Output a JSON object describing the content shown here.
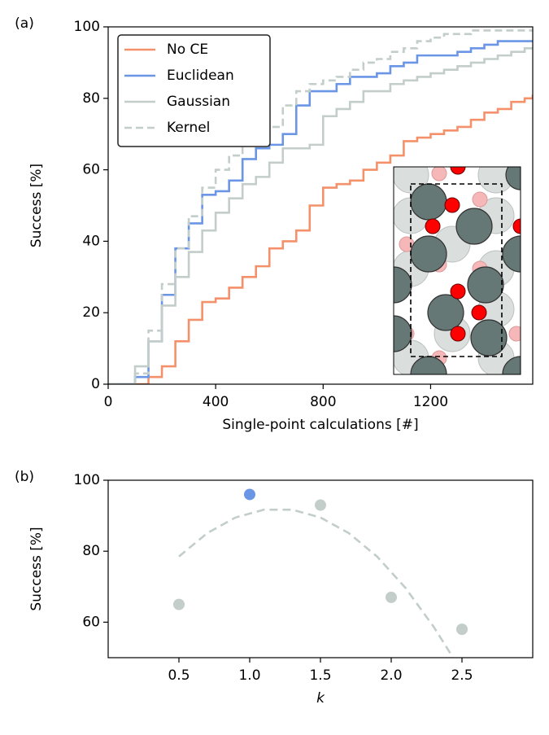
{
  "chart_data": [
    {
      "type": "line",
      "panel_label": "(a)",
      "xlabel": "Single-point calculations [#]",
      "ylabel": "Success [%]",
      "drawstyle": "steps-post",
      "legend": "upper left",
      "x": [
        0,
        50,
        100,
        150,
        200,
        250,
        300,
        350,
        400,
        450,
        500,
        550,
        600,
        650,
        700,
        750,
        800,
        850,
        900,
        950,
        1000,
        1050,
        1100,
        1150,
        1200,
        1250,
        1300,
        1350,
        1400,
        1450,
        1500,
        1550,
        1580
      ],
      "series": [
        {
          "name": "No CE",
          "color": "#f4916a",
          "values": [
            0,
            0,
            0,
            2,
            5,
            12,
            18,
            23,
            24,
            27,
            30,
            33,
            38,
            40,
            43,
            50,
            55,
            56,
            57,
            60,
            62,
            64,
            68,
            69,
            70,
            71,
            72,
            74,
            76,
            77,
            79,
            80,
            81
          ]
        },
        {
          "name": "Euclidean",
          "color": "#6b95e5",
          "values": [
            0,
            0,
            2,
            12,
            25,
            38,
            45,
            53,
            54,
            57,
            63,
            66,
            67,
            70,
            78,
            82,
            82,
            84,
            86,
            86,
            87,
            89,
            90,
            92,
            92,
            92,
            93,
            94,
            95,
            96,
            96,
            96,
            96
          ]
        },
        {
          "name": "Gaussian",
          "color": "#c3cdc9",
          "values": [
            0,
            0,
            5,
            12,
            22,
            30,
            37,
            43,
            48,
            52,
            56,
            58,
            62,
            66,
            66,
            67,
            75,
            77,
            79,
            82,
            82,
            84,
            85,
            86,
            87,
            88,
            89,
            90,
            91,
            92,
            93,
            94,
            94
          ]
        },
        {
          "name": "Kernel",
          "color": "#c3cdc9",
          "dash": true,
          "values": [
            0,
            0,
            3,
            15,
            28,
            38,
            47,
            55,
            60,
            64,
            67,
            70,
            72,
            78,
            82,
            84,
            85,
            86,
            88,
            90,
            91,
            93,
            94,
            96,
            97,
            98,
            98,
            99,
            99,
            99,
            99,
            99,
            99
          ]
        }
      ],
      "xlim": [
        0,
        1580
      ],
      "xticks": [
        0,
        400,
        800,
        1200
      ],
      "ylim": [
        0,
        100
      ],
      "yticks": [
        0,
        20,
        40,
        60,
        80,
        100
      ]
    },
    {
      "type": "scatter",
      "panel_label": "(b)",
      "xlabel": "k",
      "ylabel": "Success [%]",
      "x": [
        0.5,
        1,
        1.5,
        2,
        2.5
      ],
      "values": [
        65,
        96,
        93,
        67,
        58
      ],
      "colors": [
        "#c3cdc9",
        "#6b95e5",
        "#c3cdc9",
        "#c3cdc9",
        "#c3cdc9"
      ],
      "fit": {
        "color": "#c3cdc9",
        "dash": true,
        "x": [
          0.5,
          0.7,
          0.9,
          1.1,
          1.3,
          1.5,
          1.7,
          1.9,
          2.1,
          2.3,
          2.42
        ],
        "values": [
          78.5,
          85.1,
          89.5,
          91.7,
          91.7,
          89.5,
          85.1,
          78.5,
          69.7,
          58.7,
          51.1
        ]
      },
      "xlim": [
        0,
        3
      ],
      "xticks": [
        0.5,
        {
          "value": 1,
          "label": "1.0"
        },
        1.5,
        {
          "value": 2,
          "label": "2.0"
        },
        2.5
      ],
      "ylim": [
        50,
        100
      ],
      "yticks": [
        60,
        80,
        100
      ]
    }
  ]
}
